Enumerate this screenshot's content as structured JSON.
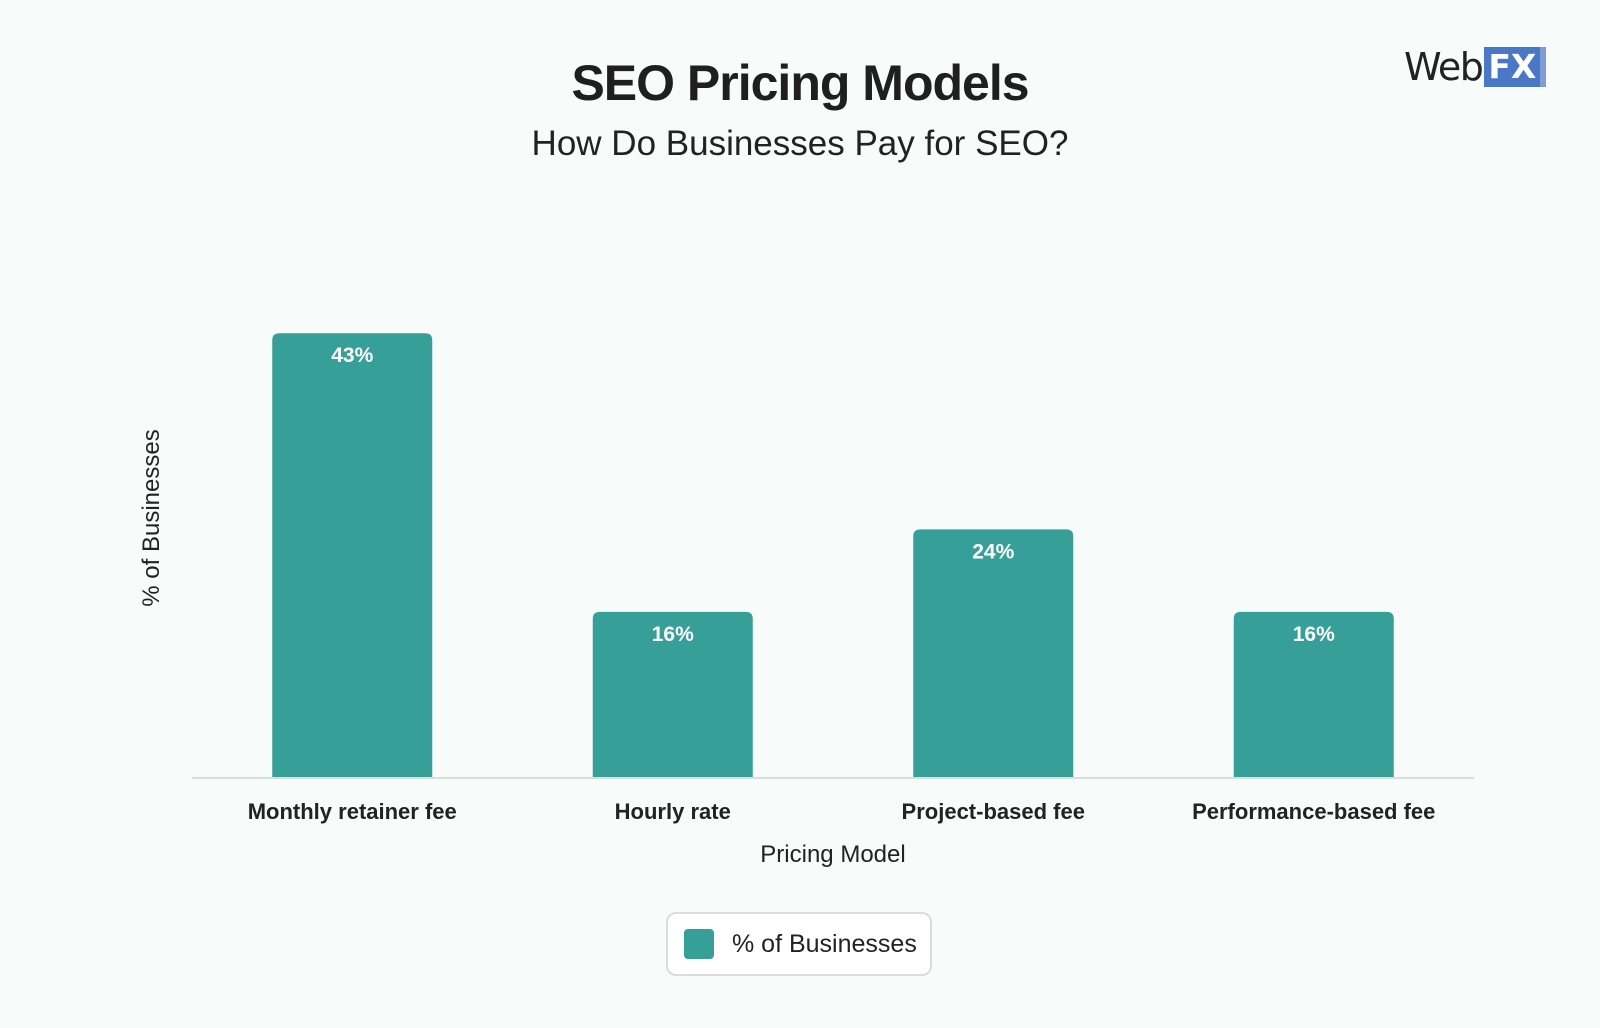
{
  "chart_data": {
    "type": "bar",
    "title": "SEO Pricing Models",
    "subtitle": "How Do Businesses Pay for SEO?",
    "xlabel": "Pricing Model",
    "ylabel": "% of Businesses",
    "categories": [
      "Monthly retainer fee",
      "Hourly rate",
      "Project-based fee",
      "Performance-based fee"
    ],
    "series": [
      {
        "name": "% of Businesses",
        "values": [
          43,
          16,
          24,
          16
        ],
        "labels": [
          "43%",
          "16%",
          "24%",
          "16%"
        ]
      }
    ],
    "ylim": [
      0,
      50
    ],
    "grid": false,
    "legend_position": "bottom-center",
    "bar_color": "#36a098"
  },
  "logo": {
    "text_part": "Web",
    "box_part": "FX"
  }
}
